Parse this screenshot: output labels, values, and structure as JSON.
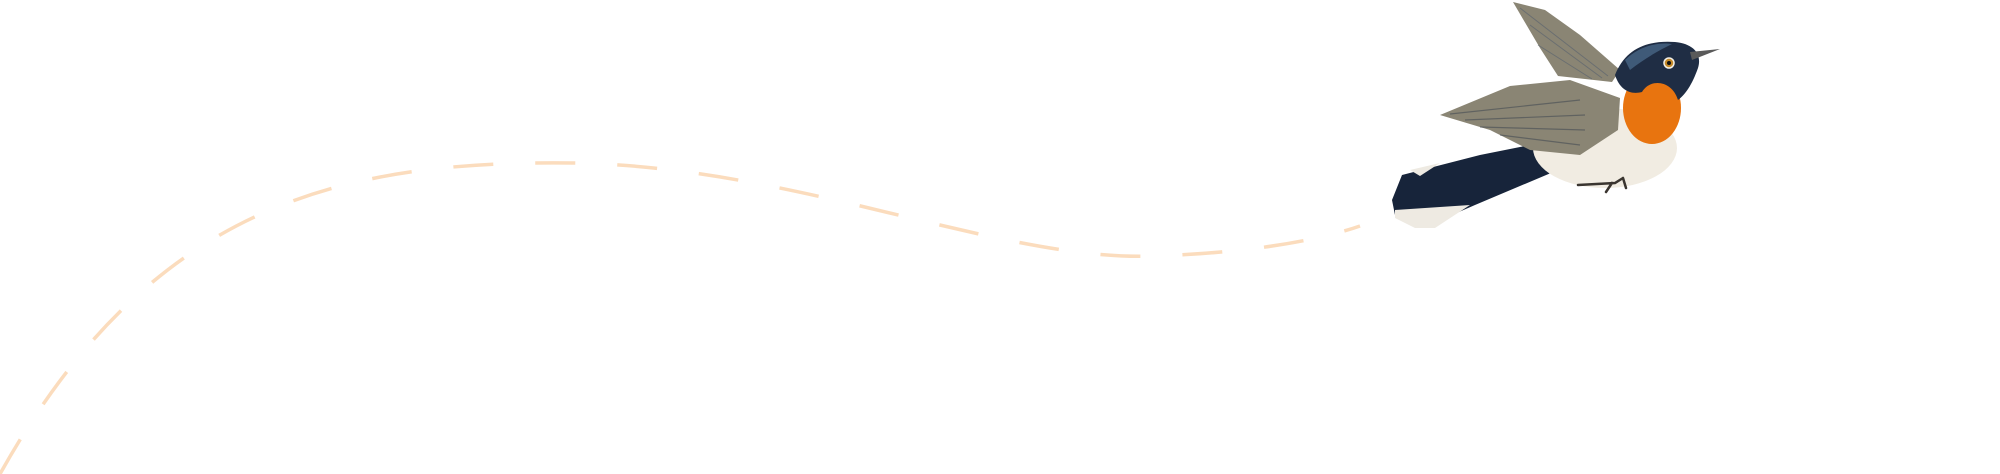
{
  "illustration": {
    "subject": "bird-icon",
    "path_style": "dashed",
    "colors": {
      "background": "#ffffff",
      "flight_path": "#fbdcbd",
      "head": "#1f2d44",
      "throat": "#e8740f",
      "belly": "#f1ece2",
      "wing": "#8a8574",
      "tail": "#17243a"
    }
  }
}
